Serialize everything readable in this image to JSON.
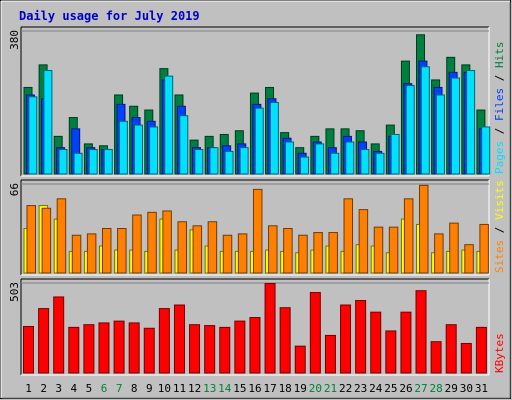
{
  "title": "Daily usage for July 2019",
  "colors": {
    "background": "#c0c0c0",
    "panel": "#c0c0c0",
    "hits": "#008040",
    "files": "#0040ff",
    "pages": "#00e0ff",
    "visits": "#ffff00",
    "sites": "#ff8000",
    "kbytes": "#ff0000",
    "weekday_label": "#000000",
    "weekend_label": "#008040",
    "title": "#0000cc"
  },
  "chart_data": [
    {
      "type": "bar",
      "panel": "hits-files-pages",
      "ymax_label": "380",
      "ylim": [
        0,
        380
      ],
      "categories": [
        "1",
        "2",
        "3",
        "4",
        "5",
        "6",
        "7",
        "8",
        "9",
        "10",
        "11",
        "12",
        "13",
        "14",
        "15",
        "16",
        "17",
        "18",
        "19",
        "20",
        "21",
        "22",
        "23",
        "24",
        "25",
        "26",
        "27",
        "28",
        "29",
        "30",
        "31"
      ],
      "series": [
        {
          "name": "Hits",
          "values": [
            230,
            290,
            100,
            150,
            80,
            75,
            210,
            180,
            170,
            280,
            210,
            90,
            100,
            105,
            115,
            215,
            230,
            110,
            70,
            100,
            120,
            120,
            115,
            80,
            130,
            300,
            370,
            250,
            310,
            290,
            170
          ]
        },
        {
          "name": "Files",
          "values": [
            210,
            200,
            70,
            120,
            70,
            65,
            185,
            150,
            140,
            250,
            180,
            70,
            70,
            75,
            80,
            185,
            200,
            95,
            55,
            85,
            70,
            100,
            85,
            60,
            100,
            240,
            300,
            230,
            270,
            270,
            120
          ]
        },
        {
          "name": "Pages",
          "values": [
            205,
            275,
            65,
            55,
            65,
            65,
            140,
            130,
            125,
            260,
            155,
            65,
            70,
            60,
            70,
            175,
            190,
            85,
            45,
            80,
            55,
            85,
            65,
            55,
            105,
            235,
            285,
            210,
            255,
            275,
            125
          ]
        }
      ],
      "right_label": [
        "Pages",
        "Files",
        "Hits"
      ]
    },
    {
      "type": "bar",
      "panel": "visits-sites",
      "ymax_label": "66",
      "ylim": [
        0,
        66
      ],
      "categories": [
        "1",
        "2",
        "3",
        "4",
        "5",
        "6",
        "7",
        "8",
        "9",
        "10",
        "11",
        "12",
        "13",
        "14",
        "15",
        "16",
        "17",
        "18",
        "19",
        "20",
        "21",
        "22",
        "23",
        "24",
        "25",
        "26",
        "27",
        "28",
        "29",
        "30",
        "31"
      ],
      "series": [
        {
          "name": "Visits",
          "values": [
            33,
            50,
            40,
            16,
            16,
            20,
            17,
            17,
            16,
            40,
            17,
            32,
            20,
            16,
            16,
            16,
            17,
            16,
            15,
            17,
            20,
            16,
            21,
            20,
            15,
            40,
            36,
            15,
            16,
            17,
            16
          ]
        },
        {
          "name": "Sites",
          "values": [
            50,
            48,
            55,
            28,
            29,
            33,
            33,
            43,
            45,
            46,
            38,
            35,
            38,
            28,
            29,
            62,
            35,
            33,
            28,
            30,
            30,
            55,
            47,
            34,
            34,
            55,
            65,
            29,
            37,
            21,
            36
          ]
        }
      ],
      "right_label": [
        "Sites",
        "Visits"
      ]
    },
    {
      "type": "bar",
      "panel": "kbytes",
      "ymax_label": "503",
      "ylim": [
        0,
        503
      ],
      "categories": [
        "1",
        "2",
        "3",
        "4",
        "5",
        "6",
        "7",
        "8",
        "9",
        "10",
        "11",
        "12",
        "13",
        "14",
        "15",
        "16",
        "17",
        "18",
        "19",
        "20",
        "21",
        "22",
        "23",
        "24",
        "25",
        "26",
        "27",
        "28",
        "29",
        "30",
        "31"
      ],
      "series": [
        {
          "name": "KBytes",
          "values": [
            260,
            360,
            425,
            255,
            270,
            280,
            290,
            280,
            250,
            360,
            380,
            270,
            265,
            255,
            290,
            310,
            500,
            365,
            150,
            450,
            210,
            380,
            405,
            340,
            235,
            340,
            460,
            175,
            270,
            165,
            255
          ]
        }
      ],
      "right_label": [
        "KBytes"
      ]
    }
  ],
  "x_labels": [
    "1",
    "2",
    "3",
    "4",
    "5",
    "6",
    "7",
    "8",
    "9",
    "10",
    "11",
    "12",
    "13",
    "14",
    "15",
    "16",
    "17",
    "18",
    "19",
    "20",
    "21",
    "22",
    "23",
    "24",
    "25",
    "26",
    "27",
    "28",
    "29",
    "30",
    "31"
  ],
  "weekend_days": [
    6,
    7,
    13,
    14,
    20,
    21,
    27,
    28
  ]
}
